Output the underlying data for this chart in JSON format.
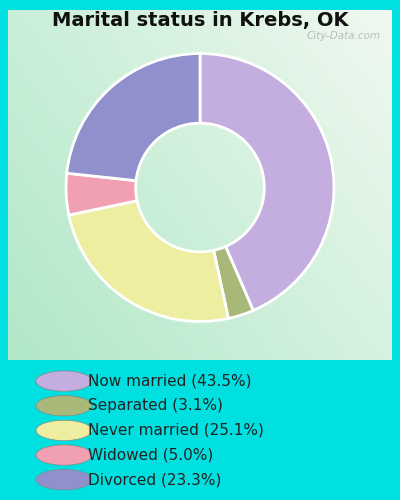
{
  "title": "Marital status in Krebs, OK",
  "slices": [
    43.5,
    3.1,
    25.1,
    5.0,
    23.3
  ],
  "labels": [
    "Now married (43.5%)",
    "Separated (3.1%)",
    "Never married (25.1%)",
    "Widowed (5.0%)",
    "Divorced (23.3%)"
  ],
  "colors": [
    "#c4aee0",
    "#a8b878",
    "#eeeea0",
    "#f0a0b0",
    "#9090cc"
  ],
  "background_color": "#00e0e0",
  "chart_bg_left": "#b0e8c8",
  "chart_bg_right": "#f0f8f0",
  "title_fontsize": 14,
  "legend_fontsize": 11,
  "watermark": "City-Data.com",
  "donut_width": 0.52
}
